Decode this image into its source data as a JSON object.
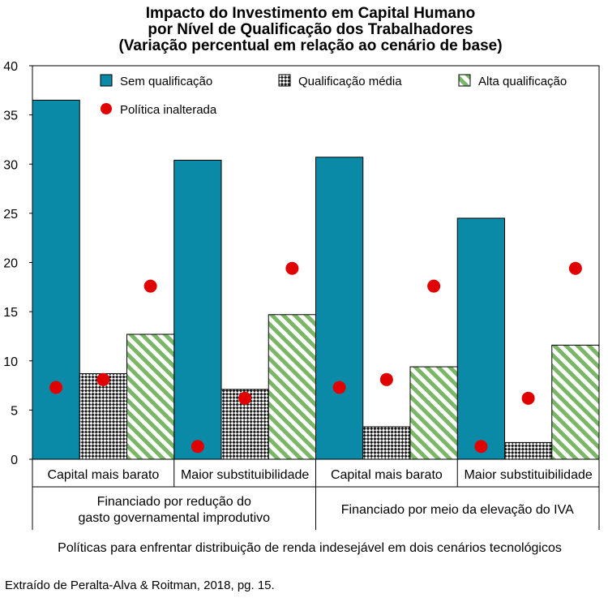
{
  "chart_data": {
    "type": "bar",
    "title_lines": [
      "Impacto do Investimento em Capital Humano",
      "por Nível de Qualificação dos Trabalhadores",
      "(Variação percentual em relação ao cenário de base)"
    ],
    "categories": [
      "Capital mais barato",
      "Maior substituibilidade",
      "Capital mais barato",
      "Maior substituibilidade"
    ],
    "groups": [
      {
        "label_lines": [
          "Financiado por redução do",
          "gasto governamental improdutivo"
        ]
      },
      {
        "label_lines": [
          "Financiado por meio da elevação do IVA"
        ]
      }
    ],
    "series": [
      {
        "name": "Sem qualificação",
        "color": "#0a8aa6",
        "pattern": "solid",
        "values": [
          36.5,
          30.4,
          30.7,
          24.5
        ]
      },
      {
        "name": "Qualificação média",
        "color": "#1a1a1a",
        "pattern": "checker",
        "values": [
          8.7,
          7.1,
          3.3,
          1.7
        ]
      },
      {
        "name": "Alta qualificação",
        "color": "#79b767",
        "pattern": "diagonal",
        "values": [
          12.7,
          14.7,
          9.4,
          11.6
        ]
      }
    ],
    "markers": {
      "name": "Política inalterada",
      "color": "#e00000",
      "values": [
        [
          7.3,
          8.1,
          17.6
        ],
        [
          1.3,
          6.2,
          19.4
        ],
        [
          7.3,
          8.1,
          17.6
        ],
        [
          1.3,
          6.2,
          19.4
        ]
      ]
    },
    "ylim": [
      0,
      40
    ],
    "yticks": [
      0,
      5,
      10,
      15,
      20,
      25,
      30,
      35,
      40
    ],
    "xlabel": "Políticas para enfrentar distribuição de renda indesejável em dois cenários tecnológicos",
    "legend_position": "top",
    "grid": false
  },
  "source": "Extraído de Peralta-Alva & Roitman, 2018, pg. 15."
}
